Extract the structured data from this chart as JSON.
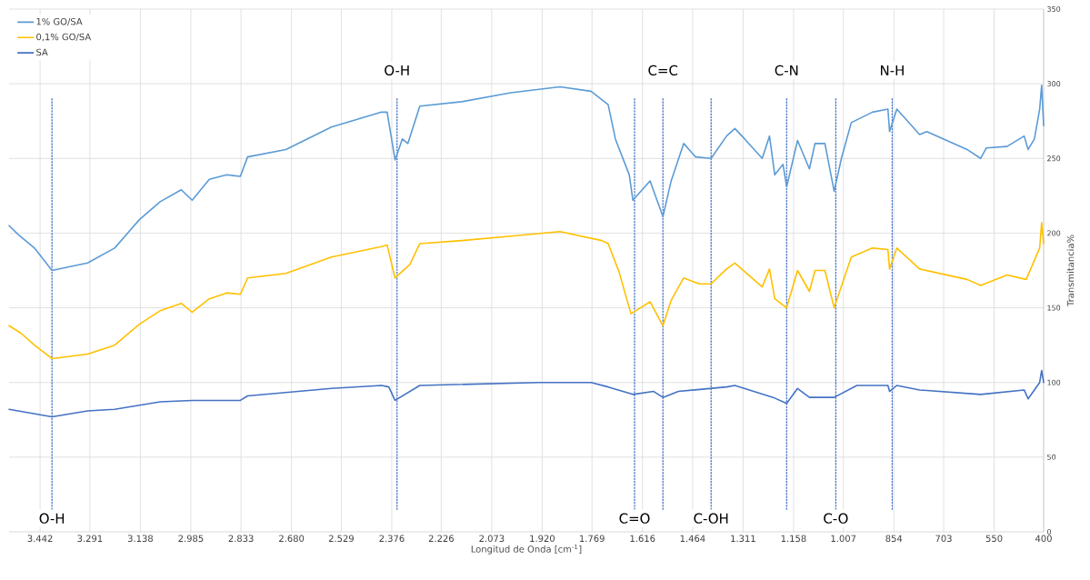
{
  "chart_data": {
    "type": "line",
    "xlabel": "Longitud de Onda [cm$^{-1}$]",
    "ylabel": "Transmitancia%",
    "xlim": [
      3536,
      400
    ],
    "ylim": [
      0,
      350
    ],
    "xticks": [
      {
        "value": 3442,
        "label": "3.442"
      },
      {
        "value": 3291,
        "label": "3.291"
      },
      {
        "value": 3138,
        "label": "3.138"
      },
      {
        "value": 2985,
        "label": "2.985"
      },
      {
        "value": 2833,
        "label": "2.833"
      },
      {
        "value": 2680,
        "label": "2.680"
      },
      {
        "value": 2529,
        "label": "2.529"
      },
      {
        "value": 2376,
        "label": "2.376"
      },
      {
        "value": 2226,
        "label": "2.226"
      },
      {
        "value": 2073,
        "label": "2.073"
      },
      {
        "value": 1920,
        "label": "1.920"
      },
      {
        "value": 1769,
        "label": "1.769"
      },
      {
        "value": 1616,
        "label": "1.616"
      },
      {
        "value": 1464,
        "label": "1.464"
      },
      {
        "value": 1311,
        "label": "1.311"
      },
      {
        "value": 1158,
        "label": "1.158"
      },
      {
        "value": 1007,
        "label": "1.007"
      },
      854,
      703,
      550,
      400
    ],
    "yticks": [
      0,
      50,
      100,
      150,
      200,
      250,
      300,
      350
    ],
    "grid": true,
    "legend": "top left",
    "marker": "none",
    "line_style": "solid",
    "series": [
      {
        "name": "1% GO/SA",
        "color": "#5b9bd5",
        "x": [
          3536,
          3508,
          3459,
          3406,
          3298,
          3216,
          3141,
          3078,
          3014,
          2981,
          2929,
          2876,
          2835,
          2813,
          2697,
          2559,
          2407,
          2390,
          2366,
          2344,
          2327,
          2291,
          2164,
          2015,
          1866,
          1772,
          1720,
          1698,
          1656,
          1645,
          1593,
          1554,
          1529,
          1491,
          1455,
          1408,
          1361,
          1336,
          1306,
          1253,
          1231,
          1215,
          1190,
          1179,
          1146,
          1110,
          1093,
          1063,
          1035,
          1013,
          983,
          919,
          872,
          867,
          845,
          776,
          754,
          632,
          591,
          574,
          511,
          459,
          447,
          428,
          412,
          406,
          400
        ],
        "values": [
          205,
          199,
          190,
          175,
          180,
          190,
          209,
          221,
          229,
          222,
          236,
          239,
          238,
          251,
          256,
          271,
          281,
          281,
          249,
          263,
          260,
          285,
          288,
          294,
          298,
          295,
          286,
          263,
          239,
          222,
          235,
          211,
          235,
          260,
          251,
          250,
          265,
          270,
          263,
          250,
          265,
          239,
          246,
          231,
          262,
          243,
          260,
          260,
          228,
          250,
          274,
          281,
          283,
          268,
          283,
          266,
          268,
          256,
          250,
          257,
          258,
          265,
          256,
          263,
          283,
          299,
          272
        ]
      },
      {
        "name": "0,1% GO/SA",
        "color": "#ffc000",
        "x": [
          3536,
          3500,
          3459,
          3406,
          3298,
          3216,
          3141,
          3078,
          3014,
          2981,
          2929,
          2876,
          2835,
          2813,
          2697,
          2559,
          2407,
          2390,
          2366,
          2321,
          2291,
          2164,
          2015,
          1866,
          1739,
          1720,
          1687,
          1651,
          1593,
          1554,
          1529,
          1491,
          1444,
          1408,
          1361,
          1336,
          1253,
          1231,
          1215,
          1179,
          1146,
          1110,
          1093,
          1063,
          1035,
          983,
          919,
          872,
          867,
          845,
          776,
          632,
          591,
          511,
          453,
          412,
          406,
          400
        ],
        "values": [
          138,
          133,
          125,
          116,
          119,
          125,
          139,
          148,
          153,
          147,
          156,
          160,
          159,
          170,
          173,
          184,
          191,
          192,
          170,
          179,
          193,
          195,
          198,
          201,
          195,
          193,
          174,
          146,
          154,
          138,
          155,
          170,
          166,
          166,
          176,
          180,
          164,
          176,
          156,
          150,
          175,
          161,
          175,
          175,
          150,
          184,
          190,
          189,
          176,
          190,
          176,
          169,
          165,
          172,
          169,
          190,
          207,
          193
        ]
      },
      {
        "name": "SA",
        "color": "#4472c4",
        "x": [
          3536,
          3406,
          3298,
          3216,
          3078,
          2981,
          2835,
          2813,
          2559,
          2407,
          2385,
          2366,
          2291,
          1930,
          1772,
          1720,
          1645,
          1582,
          1554,
          1507,
          1361,
          1336,
          1220,
          1179,
          1146,
          1110,
          1035,
          966,
          872,
          867,
          845,
          776,
          591,
          459,
          447,
          412,
          406,
          400
        ],
        "values": [
          82,
          77,
          81,
          82,
          87,
          88,
          88,
          91,
          96,
          98,
          97,
          88,
          98,
          100,
          100,
          97,
          92,
          94,
          90,
          94,
          97,
          98,
          90,
          86,
          96,
          90,
          90,
          98,
          98,
          94,
          98,
          95,
          92,
          95,
          89,
          100,
          108,
          100
        ]
      }
    ],
    "ref_lines": [
      {
        "axis": "x",
        "value": 3406,
        "color": "#4472c4",
        "line_style": "dotted",
        "label": "O-H"
      },
      {
        "axis": "x",
        "value": 2360,
        "color": "#4472c4",
        "line_style": "dotted",
        "label": "O-H"
      },
      {
        "axis": "x",
        "value": 1640,
        "color": "#4472c4",
        "line_style": "dotted",
        "label": "C=O"
      },
      {
        "axis": "x",
        "value": 1554,
        "color": "#4472c4",
        "line_style": "dotted",
        "label": "C=C"
      },
      {
        "axis": "x",
        "value": 1408,
        "color": "#4472c4",
        "line_style": "dotted",
        "label": "C-OH"
      },
      {
        "axis": "x",
        "value": 1179,
        "color": "#4472c4",
        "line_style": "dotted",
        "label": "C-N"
      },
      {
        "axis": "x",
        "value": 1030,
        "color": "#4472c4",
        "line_style": "dotted",
        "label": "C-O"
      },
      {
        "axis": "x",
        "value": 859,
        "color": "#4472c4",
        "line_style": "dotted",
        "label": "N-H"
      }
    ]
  }
}
